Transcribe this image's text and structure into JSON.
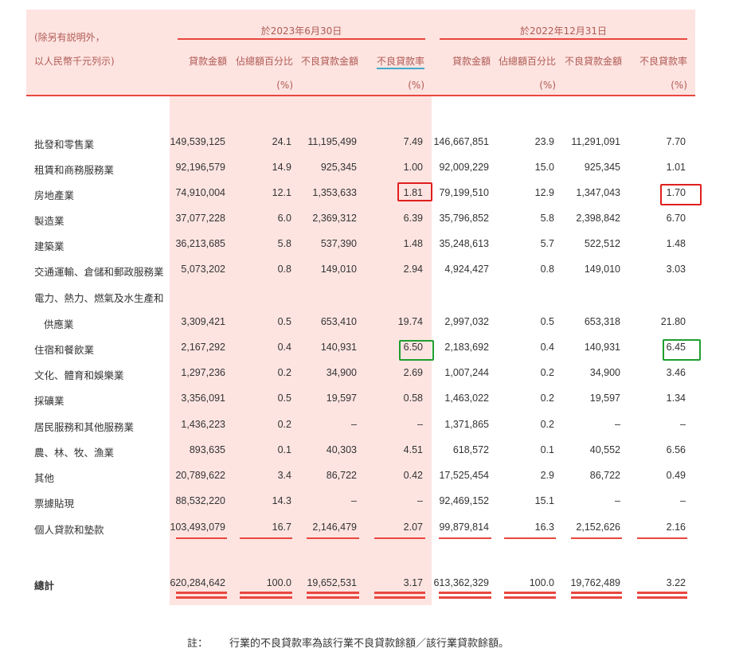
{
  "header": {
    "note_line1": "(除另有説明外，",
    "note_line2": "以人民幣千元列示)",
    "period1": "於2023年6月30日",
    "period2": "於2022年12月31日",
    "columns": [
      "貸款金額",
      "佔總額百分比",
      "不良貸款金額",
      "不良貸款率"
    ],
    "pct_unit": "(%)"
  },
  "rows": [
    {
      "label": "批發和零售業",
      "v": [
        "149,539,125",
        "24.1",
        "11,195,499",
        "7.49",
        "146,667,851",
        "23.9",
        "11,291,091",
        "7.70"
      ]
    },
    {
      "label": "租賃和商務服務業",
      "v": [
        "92,196,579",
        "14.9",
        "925,345",
        "1.00",
        "92,009,229",
        "15.0",
        "925,345",
        "1.01"
      ]
    },
    {
      "label": "房地產業",
      "v": [
        "74,910,004",
        "12.1",
        "1,353,633",
        "1.81",
        "79,199,510",
        "12.9",
        "1,347,043",
        "1.70"
      ]
    },
    {
      "label": "製造業",
      "v": [
        "37,077,228",
        "6.0",
        "2,369,312",
        "6.39",
        "35,796,852",
        "5.8",
        "2,398,842",
        "6.70"
      ]
    },
    {
      "label": "建築業",
      "v": [
        "36,213,685",
        "5.8",
        "537,390",
        "1.48",
        "35,248,613",
        "5.7",
        "522,512",
        "1.48"
      ]
    },
    {
      "label": "交通運輸、倉儲和郵政服務業",
      "v": [
        "5,073,202",
        "0.8",
        "149,010",
        "2.94",
        "4,924,427",
        "0.8",
        "149,010",
        "3.03"
      ]
    },
    {
      "label": "電力、熱力、燃氣及水生產和",
      "v": [
        "",
        "",
        "",
        "",
        "",
        "",
        "",
        ""
      ]
    },
    {
      "label": "供應業",
      "v": [
        "3,309,421",
        "0.5",
        "653,410",
        "19.74",
        "2,997,032",
        "0.5",
        "653,318",
        "21.80"
      ]
    },
    {
      "label": "住宿和餐飲業",
      "v": [
        "2,167,292",
        "0.4",
        "140,931",
        "6.50",
        "2,183,692",
        "0.4",
        "140,931",
        "6.45"
      ]
    },
    {
      "label": "文化、體育和娛樂業",
      "v": [
        "1,297,236",
        "0.2",
        "34,900",
        "2.69",
        "1,007,244",
        "0.2",
        "34,900",
        "3.46"
      ]
    },
    {
      "label": "採礦業",
      "v": [
        "3,356,091",
        "0.5",
        "19,597",
        "0.58",
        "1,463,022",
        "0.2",
        "19,597",
        "1.34"
      ]
    },
    {
      "label": "居民服務和其他服務業",
      "v": [
        "1,436,223",
        "0.2",
        "–",
        "–",
        "1,371,865",
        "0.2",
        "–",
        "–"
      ]
    },
    {
      "label": "農、林、牧、漁業",
      "v": [
        "893,635",
        "0.1",
        "40,303",
        "4.51",
        "618,572",
        "0.1",
        "40,552",
        "6.56"
      ]
    },
    {
      "label": "其他",
      "v": [
        "20,789,622",
        "3.4",
        "86,722",
        "0.42",
        "17,525,454",
        "2.9",
        "86,722",
        "0.49"
      ]
    },
    {
      "label": "票據貼現",
      "v": [
        "88,532,220",
        "14.3",
        "–",
        "–",
        "92,469,152",
        "15.1",
        "–",
        "–"
      ]
    },
    {
      "label": "個人貸款和墊款",
      "v": [
        "103,493,079",
        "16.7",
        "2,146,479",
        "2.07",
        "99,879,814",
        "16.3",
        "2,152,626",
        "2.16"
      ]
    }
  ],
  "total": {
    "label": "總計",
    "v": [
      "620,284,642",
      "100.0",
      "19,652,531",
      "3.17",
      "613,362,329",
      "100.0",
      "19,762,489",
      "3.22"
    ]
  },
  "footnote": {
    "prefix": "註：",
    "text": "行業的不良貸款率為該行業不良貸款餘額／該行業貸款餘額。"
  },
  "colors": {
    "header_bg": "#fde4e1",
    "rule": "#e8473f",
    "header_text": "#b05a54",
    "highlight_red": "#e01e1e",
    "highlight_green": "#1e9e2e"
  }
}
